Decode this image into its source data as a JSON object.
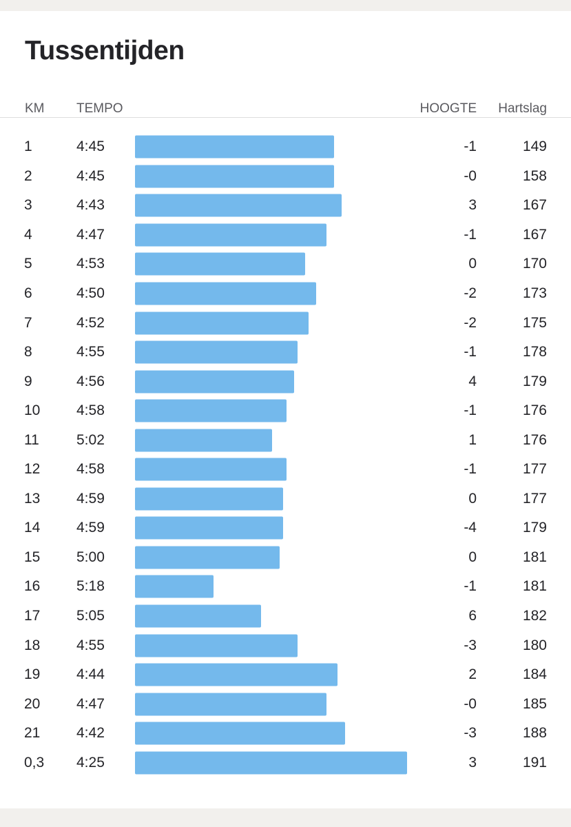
{
  "title": "Tussentijden",
  "columns": {
    "km": "KM",
    "tempo": "TEMPO",
    "hoogte": "HOOGTE",
    "hartslag": "Hartslag"
  },
  "colors": {
    "bar": "#74b9ec",
    "text": "#242428",
    "header_text": "#5a5a5f",
    "background": "#ffffff"
  },
  "splits": [
    {
      "km": "1",
      "tempo": "4:45",
      "pace_seconds": 285,
      "hoogte": "-1",
      "hartslag": "149"
    },
    {
      "km": "2",
      "tempo": "4:45",
      "pace_seconds": 285,
      "hoogte": "-0",
      "hartslag": "158"
    },
    {
      "km": "3",
      "tempo": "4:43",
      "pace_seconds": 283,
      "hoogte": "3",
      "hartslag": "167"
    },
    {
      "km": "4",
      "tempo": "4:47",
      "pace_seconds": 287,
      "hoogte": "-1",
      "hartslag": "167"
    },
    {
      "km": "5",
      "tempo": "4:53",
      "pace_seconds": 293,
      "hoogte": "0",
      "hartslag": "170"
    },
    {
      "km": "6",
      "tempo": "4:50",
      "pace_seconds": 290,
      "hoogte": "-2",
      "hartslag": "173"
    },
    {
      "km": "7",
      "tempo": "4:52",
      "pace_seconds": 292,
      "hoogte": "-2",
      "hartslag": "175"
    },
    {
      "km": "8",
      "tempo": "4:55",
      "pace_seconds": 295,
      "hoogte": "-1",
      "hartslag": "178"
    },
    {
      "km": "9",
      "tempo": "4:56",
      "pace_seconds": 296,
      "hoogte": "4",
      "hartslag": "179"
    },
    {
      "km": "10",
      "tempo": "4:58",
      "pace_seconds": 298,
      "hoogte": "-1",
      "hartslag": "176"
    },
    {
      "km": "11",
      "tempo": "5:02",
      "pace_seconds": 302,
      "hoogte": "1",
      "hartslag": "176"
    },
    {
      "km": "12",
      "tempo": "4:58",
      "pace_seconds": 298,
      "hoogte": "-1",
      "hartslag": "177"
    },
    {
      "km": "13",
      "tempo": "4:59",
      "pace_seconds": 299,
      "hoogte": "0",
      "hartslag": "177"
    },
    {
      "km": "14",
      "tempo": "4:59",
      "pace_seconds": 299,
      "hoogte": "-4",
      "hartslag": "179"
    },
    {
      "km": "15",
      "tempo": "5:00",
      "pace_seconds": 300,
      "hoogte": "0",
      "hartslag": "181"
    },
    {
      "km": "16",
      "tempo": "5:18",
      "pace_seconds": 318,
      "hoogte": "-1",
      "hartslag": "181"
    },
    {
      "km": "17",
      "tempo": "5:05",
      "pace_seconds": 305,
      "hoogte": "6",
      "hartslag": "182"
    },
    {
      "km": "18",
      "tempo": "4:55",
      "pace_seconds": 295,
      "hoogte": "-3",
      "hartslag": "180"
    },
    {
      "km": "19",
      "tempo": "4:44",
      "pace_seconds": 284,
      "hoogte": "2",
      "hartslag": "184"
    },
    {
      "km": "20",
      "tempo": "4:47",
      "pace_seconds": 287,
      "hoogte": "-0",
      "hartslag": "185"
    },
    {
      "km": "21",
      "tempo": "4:42",
      "pace_seconds": 282,
      "hoogte": "-3",
      "hartslag": "188"
    },
    {
      "km": "0,3",
      "tempo": "4:25",
      "pace_seconds": 265,
      "hoogte": "3",
      "hartslag": "191"
    }
  ]
}
